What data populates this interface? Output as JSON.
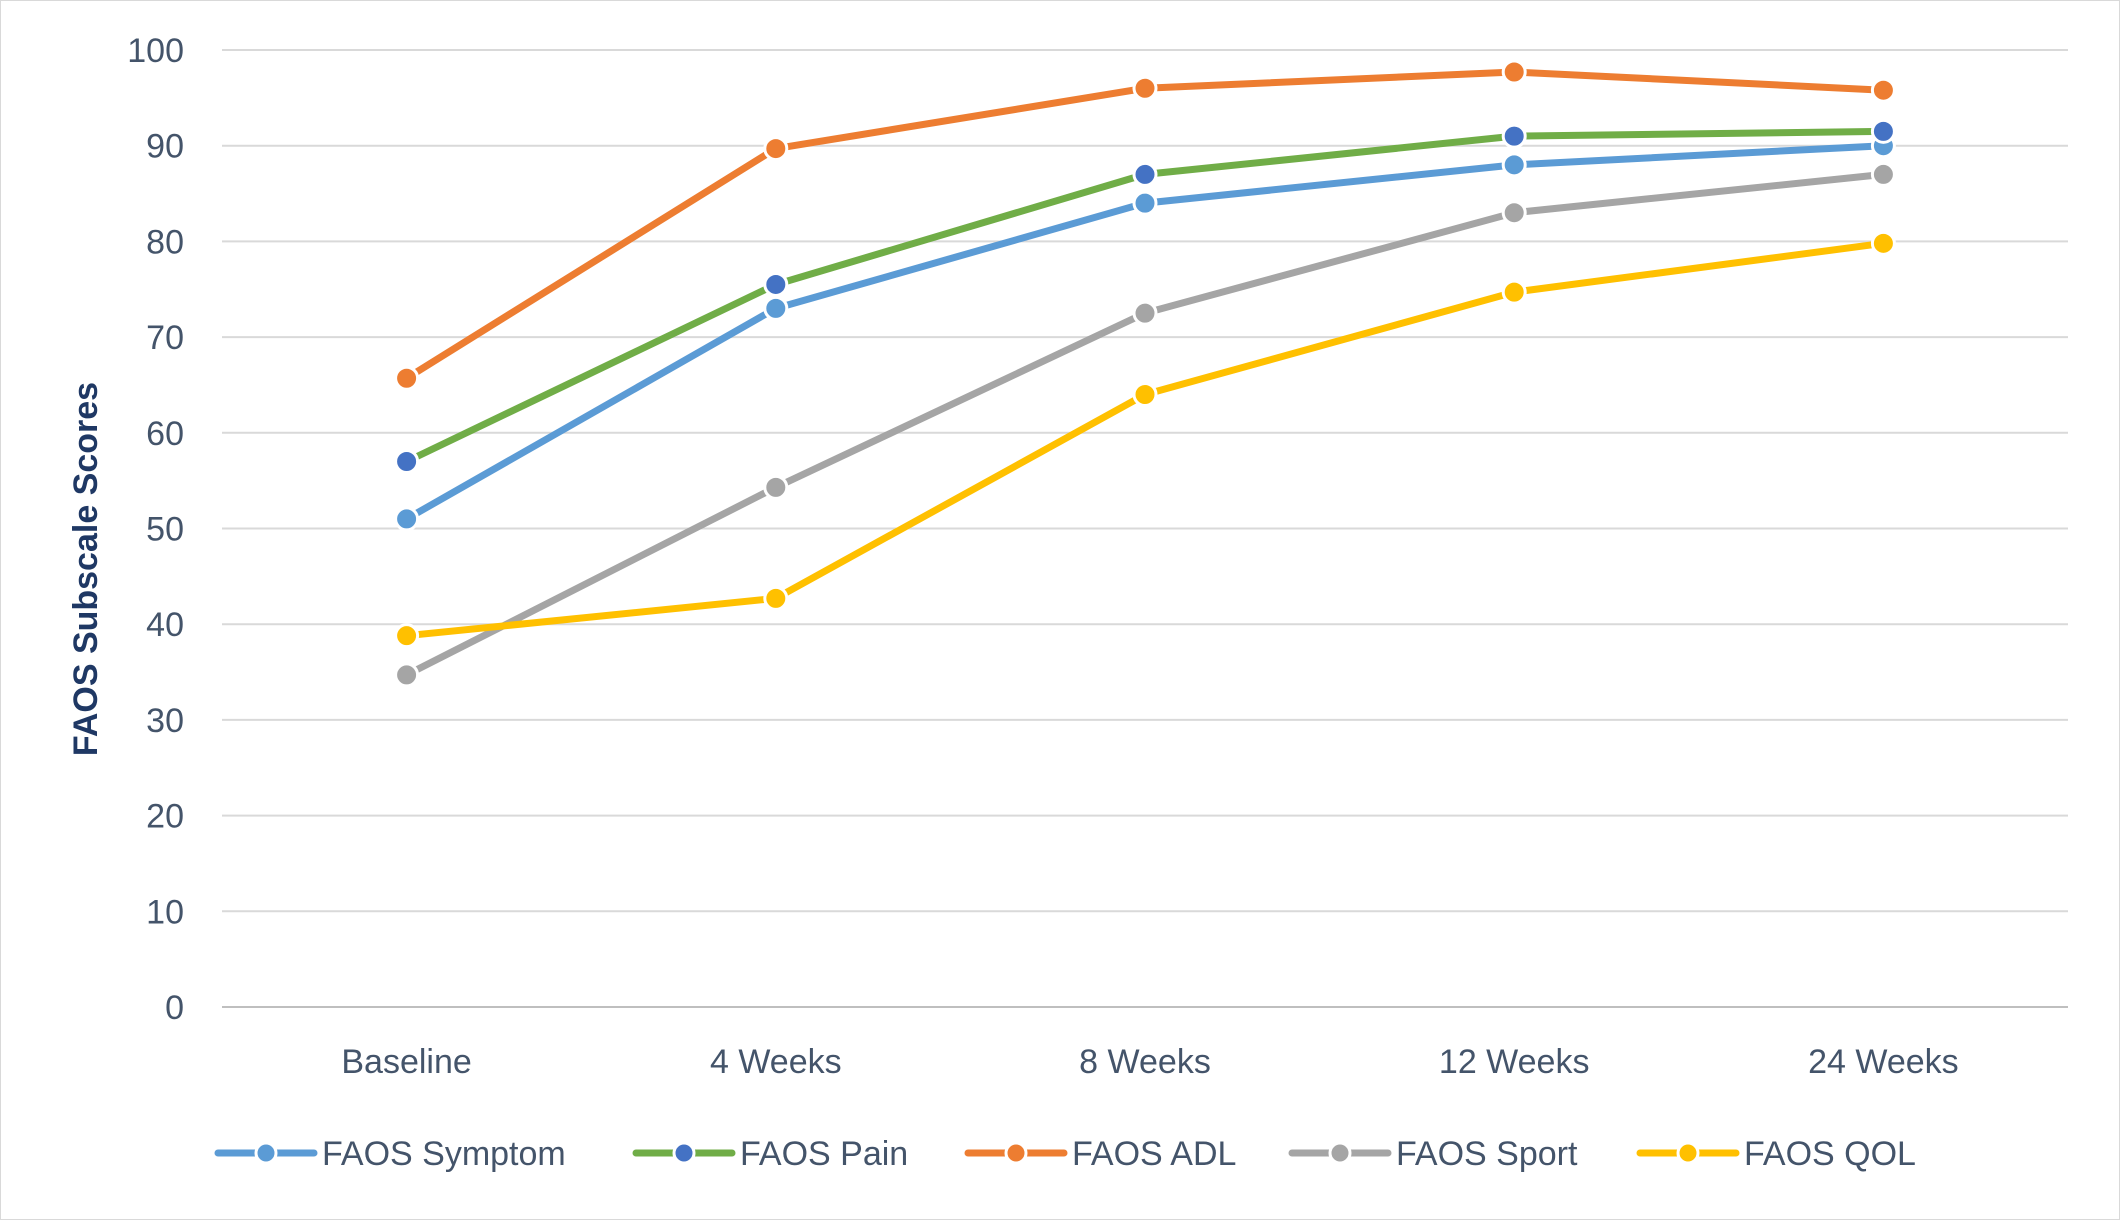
{
  "chart_data": {
    "type": "line",
    "title": "",
    "xlabel": "",
    "ylabel": "FAOS Subscale Scores",
    "ylim": [
      0,
      100
    ],
    "yticks": [
      0,
      10,
      20,
      30,
      40,
      50,
      60,
      70,
      80,
      90,
      100
    ],
    "grid": true,
    "legend_position": "bottom",
    "categories": [
      "Baseline",
      "4 Weeks",
      "8 Weeks",
      "12 Weeks",
      "24 Weeks"
    ],
    "series": [
      {
        "name": "FAOS Symptom",
        "color": "#5b9bd5",
        "marker": "#5b9bd5",
        "values": [
          51,
          73,
          84,
          88,
          90
        ]
      },
      {
        "name": "FAOS Pain",
        "color": "#70ad47",
        "marker": "#4472c4",
        "values": [
          57,
          75.5,
          87,
          91,
          91.5
        ]
      },
      {
        "name": "FAOS ADL",
        "color": "#ed7d31",
        "marker": "#ed7d31",
        "values": [
          65.7,
          89.7,
          96,
          97.7,
          95.8
        ]
      },
      {
        "name": "FAOS Sport",
        "color": "#a5a5a5",
        "marker": "#a5a5a5",
        "values": [
          34.7,
          54.3,
          72.5,
          83,
          87
        ]
      },
      {
        "name": "FAOS QOL",
        "color": "#ffc000",
        "marker": "#ffc000",
        "values": [
          38.8,
          42.7,
          64,
          74.7,
          79.8
        ]
      }
    ]
  }
}
